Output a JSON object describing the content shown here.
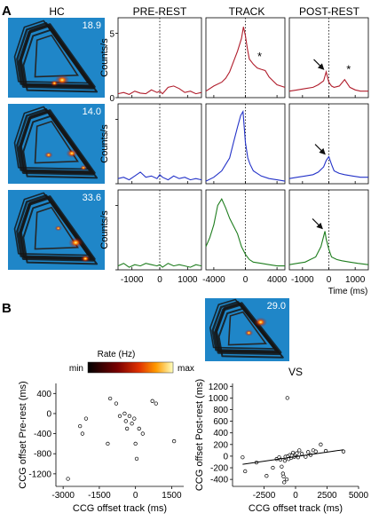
{
  "panel_labels": {
    "a": "A",
    "b": "B"
  },
  "colors": {
    "map_bg": "#1f86c8",
    "row1": "#b01c2b",
    "row2": "#2332c8",
    "row3": "#1e7d1e"
  },
  "heatmaps": {
    "title": "HC",
    "peak_rates": [
      "18.9",
      "14.0",
      "33.6",
      "29.0"
    ],
    "colorbar": {
      "title": "Rate (Hz)",
      "min_label": "min",
      "max_label": "max"
    }
  },
  "chart_data": [
    {
      "type": "line",
      "name": "ccg-grid",
      "columns": [
        {
          "title": "PRE-REST",
          "xlim": [
            -1500,
            1500
          ],
          "ticks": [
            -1000,
            0,
            1000
          ]
        },
        {
          "title": "TRACK",
          "xlim": [
            -5000,
            5000
          ],
          "ticks": [
            -4000,
            0,
            4000
          ]
        },
        {
          "title": "POST-REST",
          "xlim": [
            -1500,
            1500
          ],
          "ticks": [
            -1000,
            0,
            1000
          ]
        }
      ],
      "ylabel": "Counts/s",
      "xlabel": "Time (ms)",
      "yticks_row1": [
        0,
        5
      ],
      "ylim": [
        0,
        6.2
      ],
      "annotations": {
        "star": "*"
      },
      "rows": [
        {
          "pre_rest": {
            "x": [
              -1500,
              -1300,
              -1100,
              -900,
              -700,
              -500,
              -300,
              -100,
              0,
              100,
              300,
              500,
              700,
              900,
              1100,
              1300,
              1500
            ],
            "y": [
              0.3,
              0.4,
              0.25,
              0.5,
              0.35,
              0.3,
              0.6,
              0.4,
              0.5,
              0.3,
              0.8,
              0.9,
              0.7,
              0.4,
              0.5,
              0.3,
              0.4
            ]
          },
          "track": {
            "x": [
              -5000,
              -4000,
              -3000,
              -2500,
              -2000,
              -1500,
              -1000,
              -500,
              -250,
              0,
              250,
              500,
              1000,
              1500,
              2000,
              2500,
              3000,
              3500,
              4000,
              5000
            ],
            "y": [
              0.5,
              0.9,
              1.2,
              1.5,
              2.0,
              2.8,
              3.6,
              4.6,
              5.5,
              4.8,
              3.8,
              3.0,
              2.6,
              2.3,
              2.2,
              2.1,
              1.6,
              1.3,
              1.0,
              0.8
            ]
          },
          "post_rest": {
            "x": [
              -1500,
              -1200,
              -900,
              -600,
              -400,
              -200,
              -100,
              0,
              100,
              200,
              400,
              600,
              800,
              1000,
              1200,
              1500
            ],
            "y": [
              0.5,
              0.6,
              0.7,
              0.8,
              1.0,
              1.3,
              2.0,
              1.2,
              0.9,
              0.8,
              0.9,
              1.4,
              0.8,
              0.6,
              0.5,
              0.5
            ]
          },
          "stars": [
            {
              "col": "track",
              "x": 1800,
              "y": 2.9
            },
            {
              "col": "post_rest",
              "x": 750,
              "y": 1.9
            }
          ],
          "arrow": {
            "x": -100,
            "y": 2.0
          }
        },
        {
          "pre_rest": {
            "x": [
              -1500,
              -1300,
              -1100,
              -900,
              -700,
              -500,
              -300,
              -100,
              0,
              100,
              300,
              500,
              700,
              900,
              1100,
              1300,
              1500
            ],
            "y": [
              0.4,
              0.5,
              0.3,
              0.6,
              0.9,
              0.5,
              0.6,
              0.4,
              0.7,
              0.5,
              0.3,
              0.6,
              0.4,
              0.5,
              0.3,
              0.4,
              0.3
            ]
          },
          "track": {
            "x": [
              -5000,
              -4000,
              -3000,
              -2000,
              -1500,
              -1000,
              -600,
              -300,
              0,
              300,
              600,
              1000,
              1500,
              2000,
              3000,
              4000,
              5000
            ],
            "y": [
              0.2,
              0.5,
              1.0,
              2.0,
              3.2,
              4.4,
              5.3,
              5.6,
              3.2,
              2.0,
              1.5,
              1.0,
              0.8,
              0.6,
              0.4,
              0.3,
              0.2
            ]
          },
          "post_rest": {
            "x": [
              -1500,
              -1200,
              -900,
              -600,
              -400,
              -200,
              -100,
              0,
              100,
              200,
              400,
              600,
              900,
              1200,
              1500
            ],
            "y": [
              0.4,
              0.5,
              0.6,
              0.7,
              0.9,
              1.3,
              1.8,
              2.1,
              1.5,
              1.0,
              0.8,
              0.7,
              0.6,
              0.5,
              0.5
            ]
          },
          "stars": [],
          "arrow": {
            "x": -50,
            "y": 2.1
          }
        },
        {
          "pre_rest": {
            "x": [
              -1500,
              -1300,
              -1100,
              -900,
              -700,
              -500,
              -300,
              -100,
              0,
              100,
              300,
              500,
              700,
              900,
              1100,
              1300,
              1500
            ],
            "y": [
              0.3,
              0.5,
              0.2,
              0.4,
              0.3,
              0.5,
              0.4,
              0.3,
              0.4,
              0.2,
              0.5,
              0.3,
              0.4,
              0.3,
              0.2,
              0.4,
              0.3
            ]
          },
          "track": {
            "x": [
              -5000,
              -4500,
              -4000,
              -3500,
              -3000,
              -2500,
              -2000,
              -1500,
              -1000,
              -500,
              0,
              500,
              1000,
              2000,
              3000,
              4000,
              5000
            ],
            "y": [
              1.8,
              2.5,
              3.5,
              5.0,
              5.5,
              4.8,
              4.0,
              3.4,
              2.8,
              1.8,
              1.2,
              0.8,
              0.6,
              0.5,
              0.4,
              0.3,
              0.3
            ]
          },
          "post_rest": {
            "x": [
              -1500,
              -1200,
              -900,
              -700,
              -500,
              -400,
              -300,
              -200,
              -150,
              -100,
              0,
              100,
              300,
              500,
              800,
              1100,
              1500
            ],
            "y": [
              0.4,
              0.5,
              0.6,
              0.8,
              1.0,
              1.4,
              1.8,
              2.6,
              3.0,
              2.4,
              1.6,
              1.0,
              0.8,
              0.7,
              0.6,
              0.5,
              0.4
            ]
          },
          "stars": [],
          "arrow": {
            "x": -150,
            "y": 3.0
          }
        }
      ]
    },
    {
      "type": "scatter",
      "name": "hc-scatter",
      "title": "",
      "xlabel": "CCG offset track (ms)",
      "ylabel": "CCG offset Pre-rest (ms)",
      "xlim": [
        -3300,
        2000
      ],
      "ylim": [
        -1450,
        600
      ],
      "xticks": [
        -3000,
        -1500,
        0,
        1500
      ],
      "yticks": [
        -1200,
        -800,
        -400,
        0,
        400
      ],
      "points": [
        [
          -2800,
          -1300
        ],
        [
          -2300,
          -250
        ],
        [
          -2200,
          -400
        ],
        [
          -2050,
          -100
        ],
        [
          -1050,
          300
        ],
        [
          -800,
          200
        ],
        [
          -650,
          -50
        ],
        [
          -450,
          0
        ],
        [
          -400,
          -150
        ],
        [
          -350,
          -300
        ],
        [
          -250,
          -50
        ],
        [
          -150,
          -200
        ],
        [
          -50,
          -100
        ],
        [
          0,
          -600
        ],
        [
          50,
          -900
        ],
        [
          150,
          -300
        ],
        [
          300,
          -400
        ],
        [
          700,
          250
        ],
        [
          850,
          200
        ],
        [
          1600,
          -550
        ],
        [
          -1150,
          -600
        ]
      ]
    },
    {
      "type": "scatter",
      "name": "vs-scatter",
      "title": "VS",
      "xlabel": "CCG offset track (ms)",
      "ylabel": "CCG offset Post-rest (ms)",
      "xlim": [
        -5000,
        5000
      ],
      "ylim": [
        -520,
        1250
      ],
      "xticks": [
        -2500,
        0,
        2500,
        5000
      ],
      "yticks": [
        -400,
        -200,
        0,
        200,
        400,
        600,
        800,
        1000,
        1200
      ],
      "regression": {
        "x": [
          -4200,
          3800
        ],
        "y": [
          -140,
          110
        ]
      },
      "points": [
        [
          -4200,
          -20
        ],
        [
          -4000,
          -260
        ],
        [
          -3100,
          -110
        ],
        [
          -2300,
          -340
        ],
        [
          -1800,
          -200
        ],
        [
          -1500,
          -50
        ],
        [
          -1300,
          -20
        ],
        [
          -1200,
          -60
        ],
        [
          -1100,
          -180
        ],
        [
          -1000,
          -300
        ],
        [
          -950,
          -350
        ],
        [
          -900,
          -450
        ],
        [
          -850,
          -80
        ],
        [
          -800,
          -10
        ],
        [
          -700,
          -400
        ],
        [
          -650,
          1000
        ],
        [
          -600,
          0
        ],
        [
          -550,
          -50
        ],
        [
          -450,
          20
        ],
        [
          -350,
          -30
        ],
        [
          -300,
          10
        ],
        [
          -200,
          60
        ],
        [
          -100,
          -10
        ],
        [
          0,
          30
        ],
        [
          100,
          50
        ],
        [
          200,
          -20
        ],
        [
          300,
          100
        ],
        [
          500,
          40
        ],
        [
          800,
          -10
        ],
        [
          1000,
          70
        ],
        [
          1200,
          20
        ],
        [
          1400,
          100
        ],
        [
          1600,
          80
        ],
        [
          2000,
          200
        ],
        [
          2400,
          90
        ],
        [
          3800,
          80
        ]
      ]
    }
  ]
}
